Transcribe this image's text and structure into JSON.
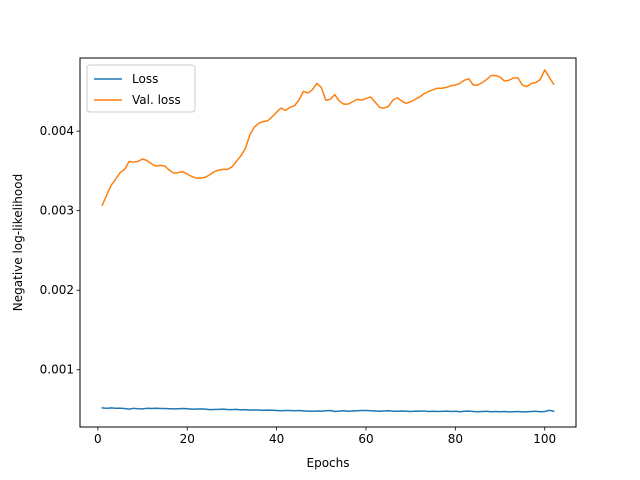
{
  "chart_data": {
    "type": "line",
    "xlabel": "Epochs",
    "ylabel": "Negative log-likelihood",
    "xlim": [
      -4,
      107
    ],
    "ylim": [
      0.00028,
      0.00492
    ],
    "xticks": [
      0,
      20,
      40,
      60,
      80,
      100
    ],
    "yticks": [
      0.001,
      0.002,
      0.003,
      0.004
    ],
    "xtick_labels": [
      "0",
      "20",
      "40",
      "60",
      "80",
      "100"
    ],
    "ytick_labels": [
      "0.001",
      "0.002",
      "0.003",
      "0.004"
    ],
    "grid": false,
    "legend_position": "upper-left",
    "series": [
      {
        "name": "Loss",
        "color": "#1f77b4",
        "x": [
          1,
          2,
          3,
          4,
          5,
          6,
          7,
          8,
          9,
          10,
          11,
          12,
          13,
          14,
          15,
          16,
          17,
          18,
          19,
          20,
          21,
          22,
          23,
          24,
          25,
          26,
          27,
          28,
          29,
          30,
          31,
          32,
          33,
          34,
          35,
          36,
          37,
          38,
          39,
          40,
          41,
          42,
          43,
          44,
          45,
          46,
          47,
          48,
          49,
          50,
          51,
          52,
          53,
          54,
          55,
          56,
          57,
          58,
          59,
          60,
          61,
          62,
          63,
          64,
          65,
          66,
          67,
          68,
          69,
          70,
          71,
          72,
          73,
          74,
          75,
          76,
          77,
          78,
          79,
          80,
          81,
          82,
          83,
          84,
          85,
          86,
          87,
          88,
          89,
          90,
          91,
          92,
          93,
          94,
          95,
          96,
          97,
          98,
          99,
          100,
          101,
          102
        ],
        "values": [
          0.00052,
          0.000515,
          0.00052,
          0.000515,
          0.000515,
          0.000512,
          0.000505,
          0.000515,
          0.00051,
          0.000508,
          0.000515,
          0.000512,
          0.000515,
          0.000512,
          0.000512,
          0.00051,
          0.000508,
          0.00051,
          0.000512,
          0.00051,
          0.000505,
          0.000505,
          0.000508,
          0.000505,
          0.000498,
          0.0005,
          0.000502,
          0.000505,
          0.0005,
          0.000498,
          0.000502,
          0.000495,
          0.000498,
          0.000492,
          0.000495,
          0.000492,
          0.00049,
          0.000492,
          0.00049,
          0.000488,
          0.000485,
          0.000488,
          0.000487,
          0.000485,
          0.000488,
          0.000483,
          0.00048,
          0.000478,
          0.000482,
          0.00048,
          0.000485,
          0.000488,
          0.000475,
          0.00048,
          0.000485,
          0.000478,
          0.000482,
          0.000485,
          0.000488,
          0.000487,
          0.000485,
          0.000482,
          0.000478,
          0.000482,
          0.000485,
          0.00048,
          0.000478,
          0.000482,
          0.000478,
          0.000475,
          0.00048,
          0.000478,
          0.000482,
          0.000475,
          0.000478,
          0.000475,
          0.000477,
          0.00048,
          0.000475,
          0.000478,
          0.000472,
          0.000478,
          0.00048,
          0.000475,
          0.000472,
          0.000475,
          0.000478,
          0.000472,
          0.000475,
          0.000472,
          0.000475,
          0.00047,
          0.000472,
          0.000475,
          0.00047,
          0.000472,
          0.000475,
          0.000478,
          0.000472,
          0.000475,
          0.00049,
          0.000478
        ]
      },
      {
        "name": "Val. loss",
        "color": "#ff7f0e",
        "x": [
          1,
          2,
          3,
          4,
          5,
          6,
          7,
          8,
          9,
          10,
          11,
          12,
          13,
          14,
          15,
          16,
          17,
          18,
          19,
          20,
          21,
          22,
          23,
          24,
          25,
          26,
          27,
          28,
          29,
          30,
          31,
          32,
          33,
          34,
          35,
          36,
          37,
          38,
          39,
          40,
          41,
          42,
          43,
          44,
          45,
          46,
          47,
          48,
          49,
          50,
          51,
          52,
          53,
          54,
          55,
          56,
          57,
          58,
          59,
          60,
          61,
          62,
          63,
          64,
          65,
          66,
          67,
          68,
          69,
          70,
          71,
          72,
          73,
          74,
          75,
          76,
          77,
          78,
          79,
          80,
          81,
          82,
          83,
          84,
          85,
          86,
          87,
          88,
          89,
          90,
          91,
          92,
          93,
          94,
          95,
          96,
          97,
          98,
          99,
          100,
          101,
          102
        ],
        "values": [
          0.00307,
          0.0032,
          0.00332,
          0.0034,
          0.00348,
          0.00352,
          0.00362,
          0.00361,
          0.00362,
          0.00365,
          0.00363,
          0.00359,
          0.00356,
          0.00357,
          0.00356,
          0.00351,
          0.00347,
          0.00348,
          0.00349,
          0.00346,
          0.00343,
          0.00341,
          0.00341,
          0.00342,
          0.00345,
          0.00349,
          0.00351,
          0.00352,
          0.00352,
          0.00355,
          0.00362,
          0.00369,
          0.00378,
          0.00395,
          0.00405,
          0.0041,
          0.00412,
          0.00413,
          0.00418,
          0.00424,
          0.00429,
          0.00426,
          0.0043,
          0.00432,
          0.00439,
          0.0045,
          0.00448,
          0.00452,
          0.0046,
          0.00455,
          0.00439,
          0.0044,
          0.00446,
          0.00438,
          0.00434,
          0.00434,
          0.00437,
          0.0044,
          0.00439,
          0.00441,
          0.00443,
          0.00437,
          0.0043,
          0.00429,
          0.00431,
          0.00439,
          0.00442,
          0.00438,
          0.00435,
          0.00437,
          0.0044,
          0.00443,
          0.00447,
          0.0045,
          0.00452,
          0.00454,
          0.00454,
          0.00455,
          0.00457,
          0.00458,
          0.0046,
          0.00464,
          0.00466,
          0.00458,
          0.00458,
          0.00461,
          0.00465,
          0.0047,
          0.0047,
          0.00468,
          0.00463,
          0.00464,
          0.00467,
          0.00467,
          0.00458,
          0.00456,
          0.0046,
          0.00461,
          0.00465,
          0.00477,
          0.00468,
          0.00459
        ]
      }
    ]
  }
}
